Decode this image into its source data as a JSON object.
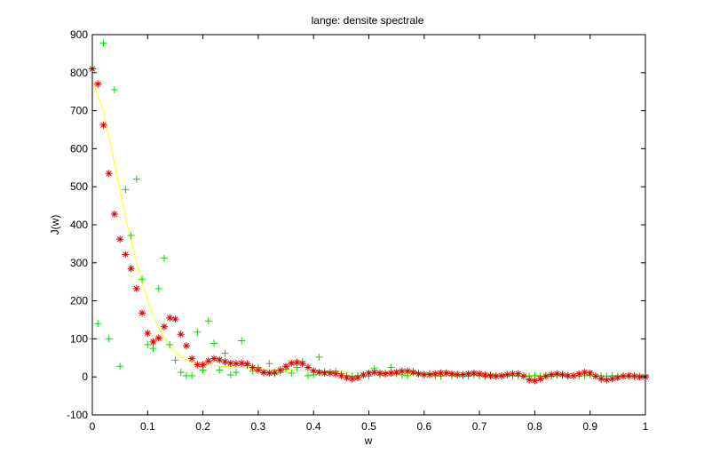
{
  "chart_data": {
    "type": "scatter",
    "title": "lange:     densite spectrale",
    "xlabel": "w",
    "ylabel": "J(w)",
    "xlim": [
      0,
      1
    ],
    "ylim": [
      -100,
      900
    ],
    "grid": false,
    "xticks": [
      0,
      0.1,
      0.2,
      0.3,
      0.4,
      0.5,
      0.6,
      0.7,
      0.8,
      0.9,
      1
    ],
    "xtick_labels": [
      "0",
      "0.1",
      "0.2",
      "0.3",
      "0.4",
      "0.5",
      "0.6",
      "0.7",
      "0.8",
      "0.9",
      "1"
    ],
    "yticks": [
      -100,
      0,
      100,
      200,
      300,
      400,
      500,
      600,
      700,
      800,
      900
    ],
    "ytick_labels": [
      "-100",
      "0",
      "100",
      "200",
      "300",
      "400",
      "500",
      "600",
      "700",
      "800",
      "900"
    ],
    "series": [
      {
        "marker": "+",
        "color": "#00dd00",
        "points": [
          [
            0.0,
            100
          ],
          [
            0.01,
            140
          ],
          [
            0.02,
            878
          ],
          [
            0.03,
            100
          ],
          [
            0.04,
            755
          ],
          [
            0.05,
            28
          ],
          [
            0.06,
            493
          ],
          [
            0.07,
            372
          ],
          [
            0.08,
            520
          ],
          [
            0.09,
            257
          ],
          [
            0.1,
            85
          ],
          [
            0.11,
            75
          ],
          [
            0.12,
            232
          ],
          [
            0.13,
            312
          ],
          [
            0.14,
            85
          ],
          [
            0.15,
            44
          ],
          [
            0.16,
            12
          ],
          [
            0.17,
            3
          ],
          [
            0.18,
            3
          ],
          [
            0.19,
            118
          ],
          [
            0.2,
            18
          ],
          [
            0.21,
            147
          ],
          [
            0.22,
            88
          ],
          [
            0.23,
            18
          ],
          [
            0.24,
            62
          ],
          [
            0.25,
            5
          ],
          [
            0.26,
            12
          ],
          [
            0.27,
            95
          ],
          [
            0.28,
            30
          ],
          [
            0.29,
            15
          ],
          [
            0.3,
            25
          ],
          [
            0.31,
            10
          ],
          [
            0.32,
            35
          ],
          [
            0.33,
            8
          ],
          [
            0.34,
            12
          ],
          [
            0.35,
            20
          ],
          [
            0.36,
            10
          ],
          [
            0.37,
            25
          ],
          [
            0.38,
            40
          ],
          [
            0.39,
            3
          ],
          [
            0.4,
            5
          ],
          [
            0.41,
            52
          ],
          [
            0.42,
            14
          ],
          [
            0.43,
            12
          ],
          [
            0.44,
            15
          ],
          [
            0.45,
            8
          ],
          [
            0.46,
            3
          ],
          [
            0.47,
            2
          ],
          [
            0.48,
            3
          ],
          [
            0.49,
            5
          ],
          [
            0.5,
            2
          ],
          [
            0.51,
            22
          ],
          [
            0.52,
            5
          ],
          [
            0.53,
            10
          ],
          [
            0.54,
            25
          ],
          [
            0.55,
            8
          ],
          [
            0.56,
            5
          ],
          [
            0.57,
            3
          ],
          [
            0.58,
            15
          ],
          [
            0.59,
            10
          ],
          [
            0.6,
            5
          ],
          [
            0.61,
            8
          ],
          [
            0.62,
            3
          ],
          [
            0.63,
            2
          ],
          [
            0.64,
            10
          ],
          [
            0.65,
            3
          ],
          [
            0.66,
            5
          ],
          [
            0.67,
            3
          ],
          [
            0.68,
            2
          ],
          [
            0.69,
            5
          ],
          [
            0.7,
            3
          ],
          [
            0.71,
            2
          ],
          [
            0.72,
            5
          ],
          [
            0.73,
            3
          ],
          [
            0.74,
            2
          ],
          [
            0.75,
            5
          ],
          [
            0.76,
            3
          ],
          [
            0.77,
            2
          ],
          [
            0.78,
            3
          ],
          [
            0.79,
            2
          ],
          [
            0.8,
            3
          ],
          [
            0.81,
            2
          ],
          [
            0.82,
            3
          ],
          [
            0.83,
            2
          ],
          [
            0.84,
            5
          ],
          [
            0.85,
            3
          ],
          [
            0.86,
            2
          ],
          [
            0.87,
            3
          ],
          [
            0.88,
            2
          ],
          [
            0.89,
            3
          ],
          [
            0.9,
            5
          ],
          [
            0.91,
            2
          ],
          [
            0.92,
            3
          ],
          [
            0.93,
            2
          ],
          [
            0.94,
            3
          ],
          [
            0.95,
            2
          ],
          [
            0.96,
            3
          ],
          [
            0.97,
            2
          ],
          [
            0.98,
            3
          ],
          [
            0.99,
            2
          ],
          [
            1.0,
            3
          ]
        ]
      },
      {
        "marker": "*",
        "color": "#dd0000",
        "points": [
          [
            0.0,
            810
          ],
          [
            0.01,
            770
          ],
          [
            0.02,
            662
          ],
          [
            0.03,
            535
          ],
          [
            0.04,
            428
          ],
          [
            0.05,
            362
          ],
          [
            0.06,
            322
          ],
          [
            0.07,
            285
          ],
          [
            0.08,
            232
          ],
          [
            0.09,
            168
          ],
          [
            0.1,
            115
          ],
          [
            0.11,
            92
          ],
          [
            0.12,
            102
          ],
          [
            0.13,
            132
          ],
          [
            0.14,
            155
          ],
          [
            0.15,
            152
          ],
          [
            0.16,
            112
          ],
          [
            0.17,
            82
          ],
          [
            0.18,
            48
          ],
          [
            0.19,
            32
          ],
          [
            0.2,
            32
          ],
          [
            0.21,
            42
          ],
          [
            0.22,
            48
          ],
          [
            0.23,
            45
          ],
          [
            0.24,
            40
          ],
          [
            0.25,
            36
          ],
          [
            0.26,
            35
          ],
          [
            0.27,
            36
          ],
          [
            0.28,
            34
          ],
          [
            0.29,
            25
          ],
          [
            0.3,
            18
          ],
          [
            0.31,
            12
          ],
          [
            0.32,
            10
          ],
          [
            0.33,
            12
          ],
          [
            0.34,
            18
          ],
          [
            0.35,
            28
          ],
          [
            0.36,
            36
          ],
          [
            0.37,
            38
          ],
          [
            0.38,
            35
          ],
          [
            0.39,
            25
          ],
          [
            0.4,
            16
          ],
          [
            0.41,
            12
          ],
          [
            0.42,
            10
          ],
          [
            0.43,
            10
          ],
          [
            0.44,
            8
          ],
          [
            0.45,
            3
          ],
          [
            0.46,
            -2
          ],
          [
            0.47,
            -5
          ],
          [
            0.48,
            -2
          ],
          [
            0.49,
            5
          ],
          [
            0.5,
            10
          ],
          [
            0.51,
            12
          ],
          [
            0.52,
            10
          ],
          [
            0.53,
            8
          ],
          [
            0.54,
            10
          ],
          [
            0.55,
            12
          ],
          [
            0.56,
            15
          ],
          [
            0.57,
            15
          ],
          [
            0.58,
            12
          ],
          [
            0.59,
            8
          ],
          [
            0.6,
            6
          ],
          [
            0.61,
            6
          ],
          [
            0.62,
            8
          ],
          [
            0.63,
            10
          ],
          [
            0.64,
            10
          ],
          [
            0.65,
            8
          ],
          [
            0.66,
            6
          ],
          [
            0.67,
            6
          ],
          [
            0.68,
            8
          ],
          [
            0.69,
            10
          ],
          [
            0.7,
            8
          ],
          [
            0.71,
            5
          ],
          [
            0.72,
            3
          ],
          [
            0.73,
            2
          ],
          [
            0.74,
            3
          ],
          [
            0.75,
            6
          ],
          [
            0.76,
            8
          ],
          [
            0.77,
            8
          ],
          [
            0.78,
            2
          ],
          [
            0.79,
            -8
          ],
          [
            0.8,
            -10
          ],
          [
            0.81,
            -5
          ],
          [
            0.82,
            2
          ],
          [
            0.83,
            6
          ],
          [
            0.84,
            8
          ],
          [
            0.85,
            6
          ],
          [
            0.86,
            3
          ],
          [
            0.87,
            3
          ],
          [
            0.88,
            8
          ],
          [
            0.89,
            12
          ],
          [
            0.9,
            10
          ],
          [
            0.91,
            2
          ],
          [
            0.92,
            -5
          ],
          [
            0.93,
            -8
          ],
          [
            0.94,
            -5
          ],
          [
            0.95,
            -2
          ],
          [
            0.96,
            2
          ],
          [
            0.97,
            3
          ],
          [
            0.98,
            2
          ],
          [
            0.99,
            0
          ],
          [
            1.0,
            0
          ]
        ]
      },
      {
        "type": "line",
        "color": "#ffff00",
        "points": [
          [
            0.0,
            780
          ],
          [
            0.02,
            700
          ],
          [
            0.04,
            560
          ],
          [
            0.06,
            420
          ],
          [
            0.08,
            300
          ],
          [
            0.1,
            200
          ],
          [
            0.12,
            128
          ],
          [
            0.14,
            80
          ],
          [
            0.16,
            52
          ],
          [
            0.18,
            38
          ],
          [
            0.2,
            32
          ],
          [
            0.22,
            30
          ],
          [
            0.24,
            28
          ],
          [
            0.26,
            26
          ],
          [
            0.28,
            24
          ],
          [
            0.3,
            22
          ],
          [
            0.32,
            20
          ],
          [
            0.34,
            18
          ],
          [
            0.36,
            17
          ],
          [
            0.38,
            16
          ],
          [
            0.4,
            15
          ],
          [
            0.42,
            14
          ],
          [
            0.44,
            13
          ],
          [
            0.46,
            12
          ],
          [
            0.48,
            11
          ],
          [
            0.5,
            10
          ],
          [
            0.55,
            9
          ],
          [
            0.6,
            8
          ],
          [
            0.65,
            7
          ],
          [
            0.7,
            6
          ],
          [
            0.75,
            5
          ],
          [
            0.8,
            4
          ],
          [
            0.85,
            3
          ],
          [
            0.9,
            2
          ],
          [
            0.95,
            2
          ],
          [
            1.0,
            1
          ]
        ]
      }
    ]
  }
}
